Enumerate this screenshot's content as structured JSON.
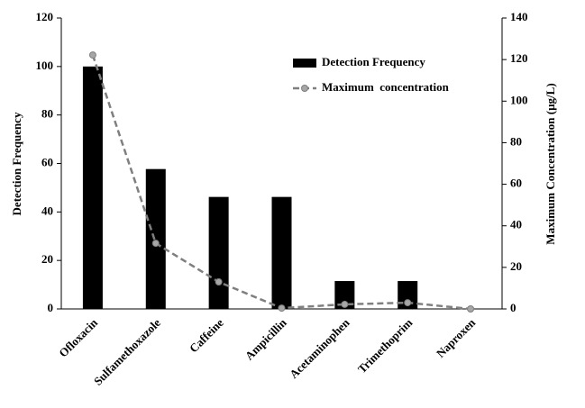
{
  "chart_data": {
    "type": "bar",
    "categories": [
      "Ofloxacin",
      "Sulfamethoxazole",
      "Caffeine",
      "Ampicillin",
      "Acetaminophen",
      "Trimethoprim",
      "Naproxen"
    ],
    "y_label": "Detection Frequency",
    "y2_label": "Maximum Concentration (µg/L)",
    "ylim": [
      0,
      120
    ],
    "yticks": [
      0,
      20,
      40,
      60,
      80,
      100,
      120
    ],
    "y2lim": [
      0,
      140
    ],
    "y2ticks": [
      0,
      20,
      40,
      60,
      80,
      100,
      120,
      140
    ],
    "legend": "upper right",
    "series": [
      {
        "name": "Detection Frequency",
        "color": "#000000",
        "values": [
          100,
          57.7,
          46.2,
          46.2,
          11.5,
          11.5,
          0
        ]
      },
      {
        "name": "Maximum  concentration",
        "color": "#7f7f7f",
        "type": "line",
        "axis": "y2",
        "values": [
          122.2,
          31.6,
          13,
          0.4,
          2.2,
          3,
          0
        ]
      }
    ]
  }
}
